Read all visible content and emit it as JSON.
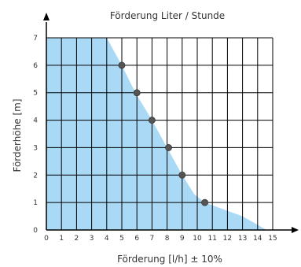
{
  "chart_data": {
    "type": "area",
    "title": "Förderung Liter / Stunde",
    "xlabel": "Förderung [l/h] ± 10%",
    "ylabel": "Förderhöhe [m]",
    "xlim": [
      0,
      15
    ],
    "ylim": [
      0,
      7
    ],
    "x_ticks": [
      "0",
      "1",
      "2",
      "3",
      "4",
      "5",
      "6",
      "7",
      "8",
      "9",
      "10",
      "11",
      "12",
      "13",
      "14",
      "15"
    ],
    "y_ticks": [
      "0",
      "1",
      "2",
      "3",
      "4",
      "5",
      "6",
      "7"
    ],
    "grid": true,
    "colors": {
      "fill": "#a9d9f5",
      "grid": "#000000",
      "marker": "#555555",
      "axis": "#000000"
    },
    "area_x": [
      0,
      4,
      5,
      5.9,
      7,
      8,
      9,
      9.8,
      10.5,
      13,
      14.6
    ],
    "area_y": [
      7,
      7,
      6,
      5,
      4,
      3,
      2,
      1.3,
      1,
      0.5,
      0
    ],
    "markers": [
      {
        "x": 5,
        "y": 6
      },
      {
        "x": 6,
        "y": 5
      },
      {
        "x": 7,
        "y": 4
      },
      {
        "x": 8.1,
        "y": 3
      },
      {
        "x": 9,
        "y": 2
      },
      {
        "x": 10.5,
        "y": 1
      }
    ]
  }
}
